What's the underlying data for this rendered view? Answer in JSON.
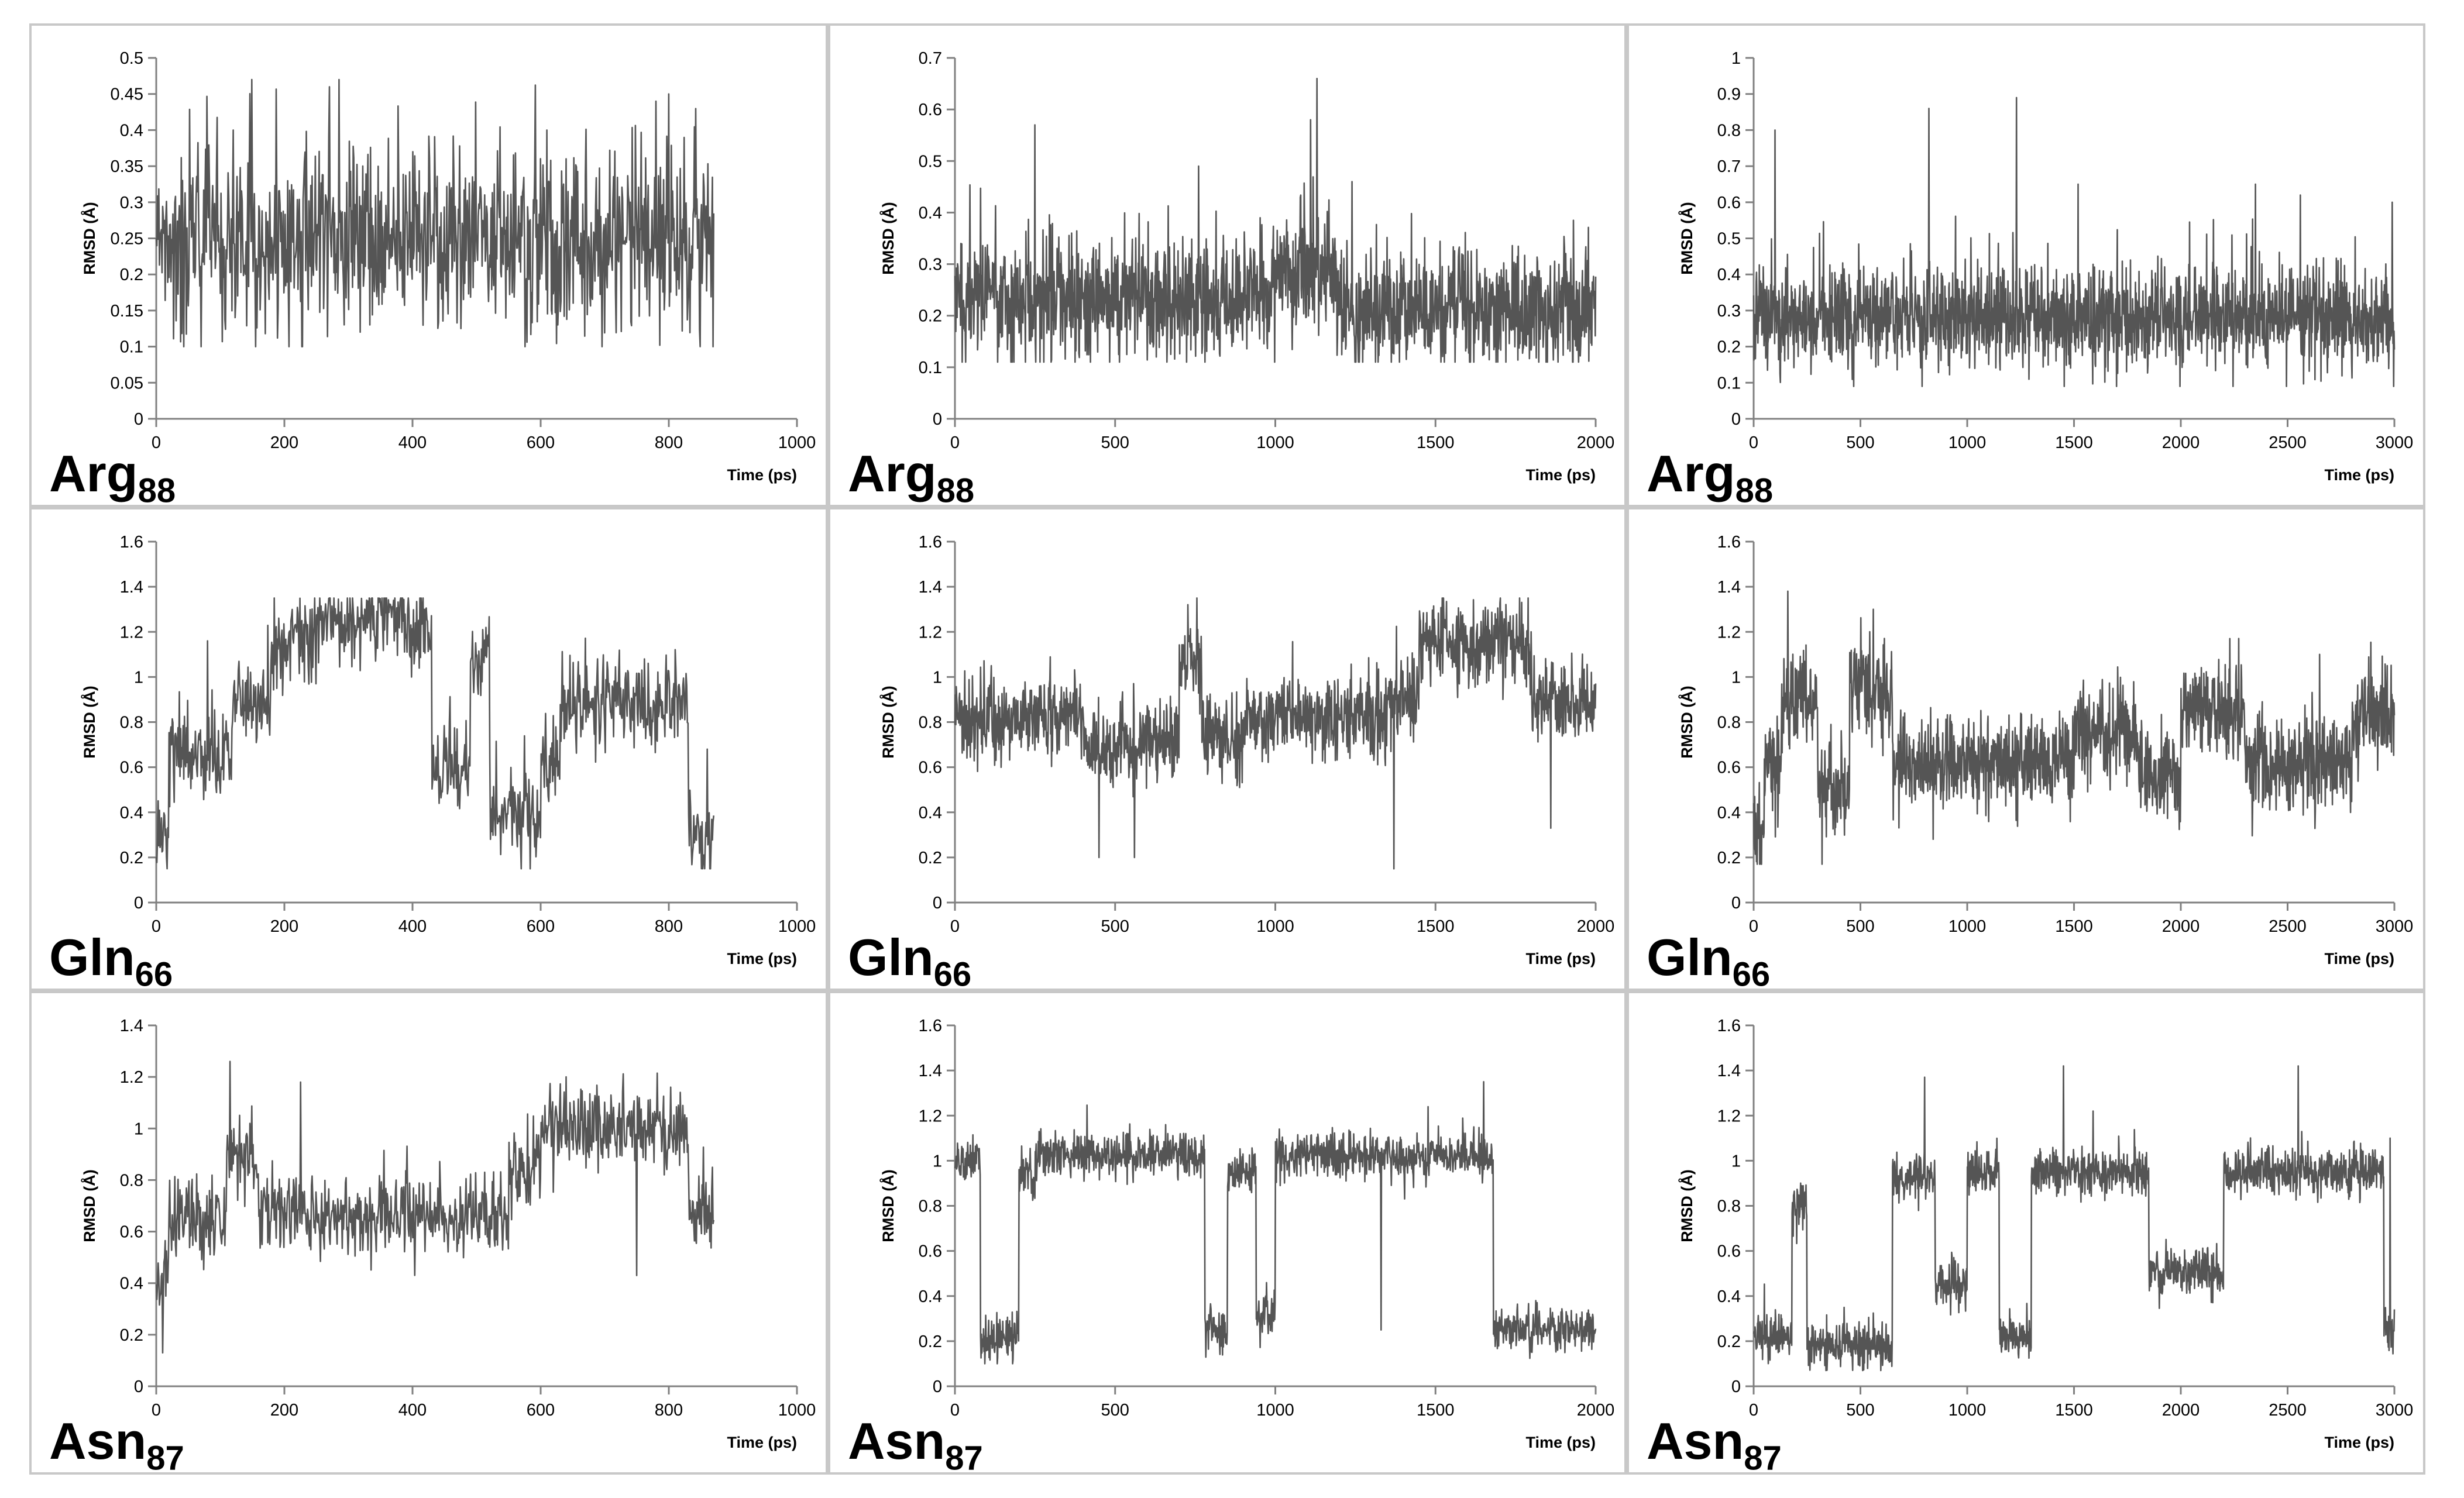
{
  "figure": {
    "ylabel": "RMSD (Å)",
    "xlabel": "Time (ps)",
    "line_color": "#555555"
  },
  "chart_data": [
    {
      "type": "line",
      "row": 0,
      "col": 0,
      "residue": "Arg",
      "subscript": "88",
      "title": "",
      "xlabel": "Time (ps)",
      "ylabel": "RMSD (Å)",
      "xlim": [
        0,
        1000
      ],
      "xticks": [
        0,
        200,
        400,
        600,
        800,
        1000
      ],
      "ylim": [
        0,
        0.5
      ],
      "yticks": [
        0,
        0.05,
        0.1,
        0.15,
        0.2,
        0.25,
        0.3,
        0.35,
        0.4,
        0.45,
        0.5
      ],
      "series": [
        {
          "name": "RMSD",
          "x_end": 870,
          "n_points": 870,
          "mean": 0.245,
          "spread": 0.07,
          "min": 0.1,
          "max": 0.47,
          "segments": [
            [
              0,
              870,
              0.245
            ]
          ],
          "spikes": [
            [
              120,
              0.4
            ],
            [
              270,
              0.46
            ],
            [
              285,
              0.47
            ],
            [
              780,
              0.44
            ],
            [
              800,
              0.45
            ],
            [
              610,
              0.4
            ],
            [
              400,
              0.37
            ]
          ]
        }
      ]
    },
    {
      "type": "line",
      "row": 0,
      "col": 1,
      "residue": "Arg",
      "subscript": "88",
      "title": "",
      "xlabel": "Time (ps)",
      "ylabel": "RMSD (Å)",
      "xlim": [
        0,
        2000
      ],
      "xticks": [
        0,
        500,
        1000,
        1500,
        2000
      ],
      "ylim": [
        0,
        0.7
      ],
      "yticks": [
        0,
        0.1,
        0.2,
        0.3,
        0.4,
        0.5,
        0.6,
        0.7
      ],
      "series": [
        {
          "name": "RMSD",
          "x_end": 2000,
          "n_points": 1500,
          "mean": 0.23,
          "spread": 0.06,
          "min": 0.11,
          "max": 0.66,
          "segments": [
            [
              0,
              1000,
              0.23
            ],
            [
              1000,
              1200,
              0.3
            ],
            [
              1200,
              2000,
              0.21
            ]
          ],
          "spikes": [
            [
              250,
              0.57
            ],
            [
              760,
              0.49
            ],
            [
              1110,
              0.58
            ],
            [
              1130,
              0.66
            ],
            [
              1240,
              0.46
            ]
          ]
        }
      ]
    },
    {
      "type": "line",
      "row": 0,
      "col": 2,
      "residue": "Arg",
      "subscript": "88",
      "title": "",
      "xlabel": "Time (ps)",
      "ylabel": "RMSD (Å)",
      "xlim": [
        0,
        3000
      ],
      "xticks": [
        0,
        500,
        1000,
        1500,
        2000,
        2500,
        3000
      ],
      "ylim": [
        0,
        1
      ],
      "yticks": [
        0,
        0.1,
        0.2,
        0.3,
        0.4,
        0.5,
        0.6,
        0.7,
        0.8,
        0.9,
        1
      ],
      "series": [
        {
          "name": "RMSD",
          "x_end": 3000,
          "n_points": 1800,
          "mean": 0.28,
          "spread": 0.07,
          "min": 0.09,
          "max": 0.89,
          "segments": [
            [
              0,
              3000,
              0.28
            ]
          ],
          "spikes": [
            [
              100,
              0.8
            ],
            [
              820,
              0.86
            ],
            [
              1230,
              0.89
            ],
            [
              1520,
              0.65
            ],
            [
              2350,
              0.65
            ],
            [
              2560,
              0.62
            ],
            [
              2990,
              0.6
            ]
          ]
        }
      ]
    },
    {
      "type": "line",
      "row": 1,
      "col": 0,
      "residue": "Gln",
      "subscript": "66",
      "title": "",
      "xlabel": "Time (ps)",
      "ylabel": "RMSD (Å)",
      "xlim": [
        0,
        1000
      ],
      "xticks": [
        0,
        200,
        400,
        600,
        800,
        1000
      ],
      "ylim": [
        0,
        1.6
      ],
      "yticks": [
        0,
        0.2,
        0.4,
        0.6,
        0.8,
        1,
        1.2,
        1.4,
        1.6
      ],
      "series": [
        {
          "name": "RMSD",
          "x_end": 870,
          "n_points": 870,
          "mean": 0.8,
          "spread": 0.1,
          "min": 0.15,
          "max": 1.35,
          "segments": [
            [
              0,
              20,
              0.3
            ],
            [
              20,
              120,
              0.65
            ],
            [
              120,
              180,
              0.9
            ],
            [
              180,
              250,
              1.17
            ],
            [
              250,
              430,
              1.25
            ],
            [
              430,
              490,
              0.6
            ],
            [
              490,
              520,
              1.1
            ],
            [
              520,
              600,
              0.4
            ],
            [
              600,
              630,
              0.65
            ],
            [
              630,
              830,
              0.88
            ],
            [
              830,
              870,
              0.3
            ]
          ],
          "spikes": [
            [
              80,
              1.16
            ],
            [
              370,
              1.34
            ],
            [
              510,
              1.21
            ],
            [
              570,
              0.15
            ],
            [
              860,
              0.68
            ]
          ]
        }
      ]
    },
    {
      "type": "line",
      "row": 1,
      "col": 1,
      "residue": "Gln",
      "subscript": "66",
      "title": "",
      "xlabel": "Time (ps)",
      "ylabel": "RMSD (Å)",
      "xlim": [
        0,
        2000
      ],
      "xticks": [
        0,
        500,
        1000,
        1500,
        2000
      ],
      "ylim": [
        0,
        1.6
      ],
      "yticks": [
        0,
        0.2,
        0.4,
        0.6,
        0.8,
        1,
        1.2,
        1.4,
        1.6
      ],
      "series": [
        {
          "name": "RMSD",
          "x_end": 2000,
          "n_points": 1500,
          "mean": 0.8,
          "spread": 0.09,
          "min": 0.15,
          "max": 1.35,
          "segments": [
            [
              0,
              400,
              0.82
            ],
            [
              400,
              600,
              0.7
            ],
            [
              600,
              700,
              0.72
            ],
            [
              700,
              770,
              1.05
            ],
            [
              770,
              900,
              0.72
            ],
            [
              900,
              1350,
              0.82
            ],
            [
              1350,
              1450,
              0.88
            ],
            [
              1450,
              1800,
              1.15
            ],
            [
              1800,
              2000,
              0.88
            ]
          ],
          "spikes": [
            [
              450,
              0.2
            ],
            [
              560,
              0.2
            ],
            [
              755,
              1.35
            ],
            [
              1370,
              0.15
            ],
            [
              1860,
              0.33
            ]
          ]
        }
      ]
    },
    {
      "type": "line",
      "row": 1,
      "col": 2,
      "residue": "Gln",
      "subscript": "66",
      "title": "",
      "xlabel": "Time (ps)",
      "ylabel": "RMSD (Å)",
      "xlim": [
        0,
        3000
      ],
      "xticks": [
        0,
        500,
        1000,
        1500,
        2000,
        2500,
        3000
      ],
      "ylim": [
        0,
        1.6
      ],
      "yticks": [
        0,
        0.2,
        0.4,
        0.6,
        0.8,
        1,
        1.2,
        1.4,
        1.6
      ],
      "series": [
        {
          "name": "RMSD",
          "x_end": 3000,
          "n_points": 1800,
          "mean": 0.65,
          "spread": 0.1,
          "min": 0.17,
          "max": 1.38,
          "segments": [
            [
              0,
              50,
              0.3
            ],
            [
              50,
              130,
              0.6
            ],
            [
              130,
              300,
              0.9
            ],
            [
              300,
              450,
              0.5
            ],
            [
              450,
              650,
              0.95
            ],
            [
              650,
              1500,
              0.62
            ],
            [
              1500,
              1800,
              0.75
            ],
            [
              1800,
              2000,
              0.55
            ],
            [
              2000,
              2300,
              0.85
            ],
            [
              2300,
              2500,
              0.6
            ],
            [
              2500,
              2800,
              0.62
            ],
            [
              2800,
              3000,
              0.82
            ]
          ],
          "spikes": [
            [
              160,
              1.38
            ],
            [
              320,
              0.17
            ],
            [
              560,
              1.3
            ],
            [
              2230,
              1.17
            ],
            [
              2650,
              1.1
            ]
          ]
        }
      ]
    },
    {
      "type": "line",
      "row": 2,
      "col": 0,
      "residue": "Asn",
      "subscript": "87",
      "title": "",
      "xlabel": "Time (ps)",
      "ylabel": "RMSD (Å)",
      "xlim": [
        0,
        1000
      ],
      "xticks": [
        0,
        200,
        400,
        600,
        800,
        1000
      ],
      "ylim": [
        0,
        1.4
      ],
      "yticks": [
        0,
        0.2,
        0.4,
        0.6,
        0.8,
        1,
        1.2,
        1.4
      ],
      "series": [
        {
          "name": "RMSD",
          "x_end": 870,
          "n_points": 870,
          "mean": 0.67,
          "spread": 0.08,
          "min": 0.13,
          "max": 1.26,
          "segments": [
            [
              0,
              20,
              0.4
            ],
            [
              20,
              110,
              0.65
            ],
            [
              110,
              160,
              0.9
            ],
            [
              160,
              550,
              0.66
            ],
            [
              550,
              600,
              0.85
            ],
            [
              600,
              830,
              1.0
            ],
            [
              830,
              870,
              0.68
            ]
          ],
          "spikes": [
            [
              115,
              1.26
            ],
            [
              225,
              1.18
            ],
            [
              640,
              1.2
            ],
            [
              750,
              0.43
            ],
            [
              10,
              0.13
            ]
          ]
        }
      ]
    },
    {
      "type": "line",
      "row": 2,
      "col": 1,
      "residue": "Asn",
      "subscript": "87",
      "title": "",
      "xlabel": "Time (ps)",
      "ylabel": "RMSD (Å)",
      "xlim": [
        0,
        2000
      ],
      "xticks": [
        0,
        500,
        1000,
        1500,
        2000
      ],
      "ylim": [
        0,
        1.6
      ],
      "yticks": [
        0,
        0.2,
        0.4,
        0.6,
        0.8,
        1,
        1.2,
        1.4,
        1.6
      ],
      "series": [
        {
          "name": "RMSD",
          "x_end": 2000,
          "n_points": 1500,
          "mean": 0.7,
          "spread": 0.05,
          "min": 0.1,
          "max": 1.35,
          "segments": [
            [
              0,
              80,
              1.0
            ],
            [
              80,
              200,
              0.22
            ],
            [
              200,
              250,
              0.95
            ],
            [
              250,
              780,
              1.02
            ],
            [
              780,
              850,
              0.25
            ],
            [
              850,
              940,
              0.95
            ],
            [
              940,
              1000,
              0.3
            ],
            [
              1000,
              1680,
              1.02
            ],
            [
              1680,
              2000,
              0.25
            ]
          ],
          "spikes": [
            [
              1650,
              1.35
            ],
            [
              1330,
              0.25
            ]
          ]
        }
      ]
    },
    {
      "type": "line",
      "row": 2,
      "col": 2,
      "residue": "Asn",
      "subscript": "87",
      "title": "",
      "xlabel": "Time (ps)",
      "ylabel": "RMSD (Å)",
      "xlim": [
        0,
        3000
      ],
      "xticks": [
        0,
        500,
        1000,
        1500,
        2000,
        2500,
        3000
      ],
      "ylim": [
        0,
        1.6
      ],
      "yticks": [
        0,
        0.2,
        0.4,
        0.6,
        0.8,
        1,
        1.2,
        1.4,
        1.6
      ],
      "series": [
        {
          "name": "RMSD",
          "x_end": 3000,
          "n_points": 1800,
          "mean": 0.6,
          "spread": 0.05,
          "min": 0.07,
          "max": 1.42,
          "segments": [
            [
              0,
              180,
              0.22
            ],
            [
              180,
              250,
              0.8
            ],
            [
              250,
              650,
              0.18
            ],
            [
              650,
              850,
              0.92
            ],
            [
              850,
              1000,
              0.45
            ],
            [
              1000,
              1150,
              0.95
            ],
            [
              1150,
              1300,
              0.22
            ],
            [
              1300,
              1850,
              0.95
            ],
            [
              1850,
              2200,
              0.5
            ],
            [
              2200,
              2950,
              0.95
            ],
            [
              2950,
              3000,
              0.25
            ]
          ],
          "spikes": [
            [
              800,
              1.37
            ],
            [
              1450,
              1.42
            ],
            [
              1590,
              1.22
            ],
            [
              2550,
              1.42
            ],
            [
              2980,
              1.1
            ]
          ]
        }
      ]
    }
  ]
}
